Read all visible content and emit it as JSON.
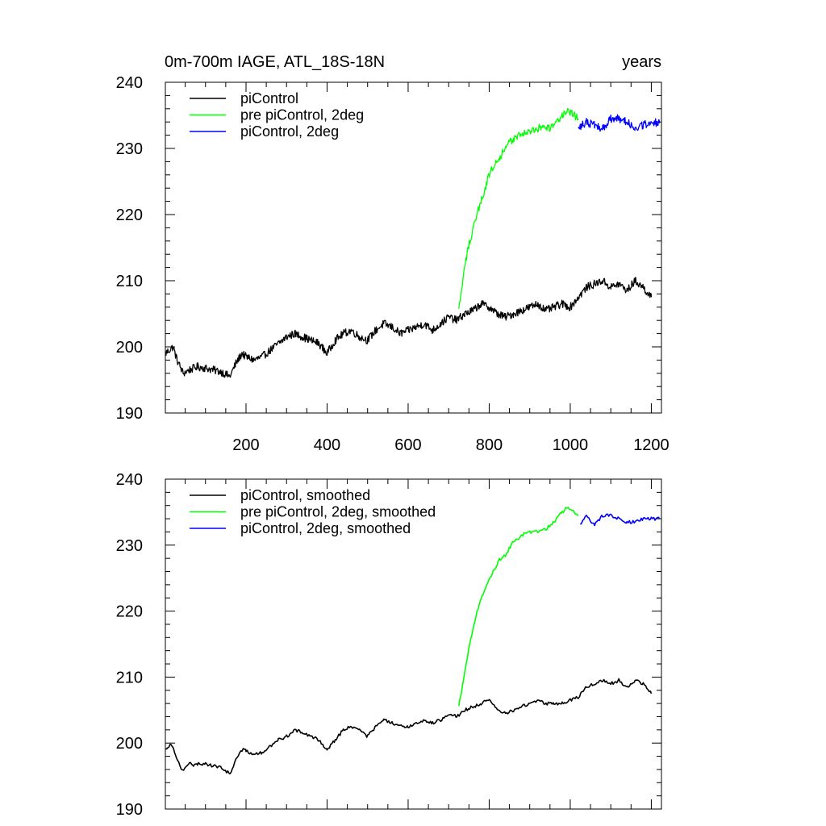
{
  "chart_data": [
    {
      "type": "line",
      "title_left": "0m-700m IAGE, ATL_18S-18N",
      "title_right": "years",
      "xlabel": "",
      "ylabel": "",
      "xlim": [
        1,
        1225
      ],
      "ylim": [
        190,
        240
      ],
      "x_ticks": [
        200,
        400,
        600,
        800,
        1000,
        1200
      ],
      "x_tick_labels": [
        "200",
        "400",
        "600",
        "800",
        "1000",
        "1200"
      ],
      "y_ticks": [
        190,
        200,
        210,
        220,
        230,
        240
      ],
      "y_tick_labels": [
        "190",
        "200",
        "210",
        "220",
        "230",
        "240"
      ],
      "legend_position": "top-left",
      "smoothed": false,
      "series": [
        {
          "name": "piControl",
          "color": "#000000",
          "x": [
            1,
            20,
            30,
            45,
            60,
            80,
            100,
            120,
            140,
            160,
            175,
            190,
            200,
            220,
            240,
            260,
            280,
            300,
            320,
            340,
            360,
            380,
            400,
            420,
            440,
            460,
            480,
            500,
            520,
            540,
            560,
            580,
            600,
            620,
            640,
            660,
            680,
            700,
            720,
            740,
            760,
            780,
            800,
            820,
            840,
            860,
            880,
            900,
            920,
            940,
            960,
            980,
            1000,
            1020,
            1040,
            1060,
            1080,
            1100,
            1120,
            1140,
            1160,
            1180,
            1200
          ],
          "values": [
            199.0,
            200.0,
            198.0,
            196.0,
            196.5,
            197.0,
            196.8,
            196.5,
            196.2,
            195.5,
            197.5,
            199.0,
            198.5,
            198.0,
            198.5,
            199.5,
            200.5,
            201.5,
            202.0,
            201.5,
            201.0,
            200.5,
            199.0,
            201.0,
            202.0,
            202.5,
            201.5,
            201.0,
            202.5,
            203.5,
            203.0,
            202.0,
            202.5,
            203.0,
            203.5,
            202.5,
            203.5,
            204.5,
            204.0,
            205.0,
            205.5,
            206.5,
            206.0,
            205.0,
            204.5,
            205.0,
            205.5,
            206.0,
            206.5,
            205.5,
            206.0,
            206.5,
            206.0,
            207.5,
            209.0,
            209.5,
            210.0,
            209.0,
            209.5,
            208.5,
            210.0,
            209.0,
            207.5
          ],
          "noise": 0.6
        },
        {
          "name": "pre piControl, 2deg",
          "color": "#00ff00",
          "x": [
            725,
            735,
            745,
            760,
            775,
            790,
            800,
            815,
            830,
            845,
            860,
            875,
            890,
            905,
            920,
            935,
            950,
            965,
            980,
            995,
            1010,
            1020
          ],
          "values": [
            205.5,
            210.0,
            214.0,
            218.0,
            221.0,
            224.0,
            226.0,
            228.0,
            229.0,
            230.5,
            231.5,
            232.0,
            232.5,
            232.5,
            233.0,
            233.5,
            233.0,
            234.0,
            235.0,
            235.5,
            235.0,
            234.5
          ],
          "noise": 0.6
        },
        {
          "name": "piControl, 2deg",
          "color": "#0000ff",
          "x": [
            1020,
            1040,
            1060,
            1080,
            1100,
            1120,
            1140,
            1160,
            1180,
            1200,
            1220
          ],
          "values": [
            233.0,
            234.0,
            233.5,
            233.0,
            234.5,
            234.5,
            234.0,
            233.0,
            233.5,
            234.0,
            233.8
          ],
          "noise": 0.6
        }
      ]
    },
    {
      "type": "line",
      "xlim": [
        1,
        1225
      ],
      "ylim": [
        190,
        240
      ],
      "x_ticks": [
        200,
        400,
        600,
        800,
        1000,
        1200
      ],
      "y_ticks": [
        190,
        200,
        210,
        220,
        230,
        240
      ],
      "y_tick_labels": [
        "190",
        "200",
        "210",
        "220",
        "230",
        "240"
      ],
      "legend_position": "top-left",
      "smoothed": true,
      "series": [
        {
          "name": "piControl, smoothed",
          "color": "#000000",
          "x": [
            1,
            15,
            25,
            40,
            50,
            60,
            70,
            80,
            100,
            120,
            140,
            160,
            175,
            190,
            200,
            220,
            240,
            260,
            280,
            300,
            320,
            340,
            360,
            380,
            400,
            420,
            440,
            460,
            480,
            500,
            520,
            540,
            560,
            580,
            600,
            620,
            640,
            660,
            680,
            700,
            720,
            740,
            760,
            780,
            800,
            820,
            840,
            860,
            880,
            900,
            920,
            940,
            960,
            980,
            1000,
            1020,
            1040,
            1060,
            1080,
            1100,
            1120,
            1140,
            1160,
            1180,
            1200
          ],
          "values": [
            199.0,
            200.0,
            198.5,
            196.0,
            196.2,
            197.0,
            196.5,
            196.8,
            196.9,
            196.5,
            196.3,
            195.3,
            197.5,
            199.0,
            198.8,
            198.3,
            198.5,
            199.5,
            200.5,
            201.0,
            202.0,
            201.5,
            201.0,
            200.5,
            199.0,
            200.5,
            202.0,
            202.5,
            202.0,
            201.0,
            202.5,
            203.5,
            203.0,
            202.5,
            202.5,
            203.0,
            203.5,
            203.0,
            203.5,
            204.5,
            204.0,
            205.0,
            205.5,
            206.0,
            206.5,
            205.0,
            204.5,
            205.0,
            205.5,
            206.0,
            206.5,
            206.0,
            206.0,
            206.0,
            206.5,
            207.0,
            208.5,
            209.0,
            209.5,
            209.0,
            209.5,
            208.5,
            209.5,
            209.0,
            207.5
          ],
          "noise": 0.25
        },
        {
          "name": "pre piControl, 2deg, smoothed",
          "color": "#00ff00",
          "x": [
            725,
            740,
            755,
            770,
            790,
            810,
            825,
            840,
            860,
            880,
            900,
            920,
            940,
            960,
            980,
            995,
            1010,
            1020
          ],
          "values": [
            205.5,
            211.0,
            216.0,
            220.0,
            223.5,
            226.0,
            227.8,
            228.5,
            230.5,
            231.5,
            232.0,
            232.0,
            232.5,
            233.5,
            235.0,
            235.8,
            235.0,
            234.5
          ],
          "noise": 0.25
        },
        {
          "name": "piControl, 2deg, smoothed",
          "color": "#0000ff",
          "x": [
            1025,
            1040,
            1060,
            1080,
            1100,
            1120,
            1140,
            1160,
            1180,
            1200,
            1220
          ],
          "values": [
            233.0,
            234.5,
            233.0,
            234.5,
            234.5,
            234.0,
            233.5,
            233.5,
            234.0,
            234.0,
            234.0
          ],
          "noise": 0.25
        }
      ]
    }
  ]
}
